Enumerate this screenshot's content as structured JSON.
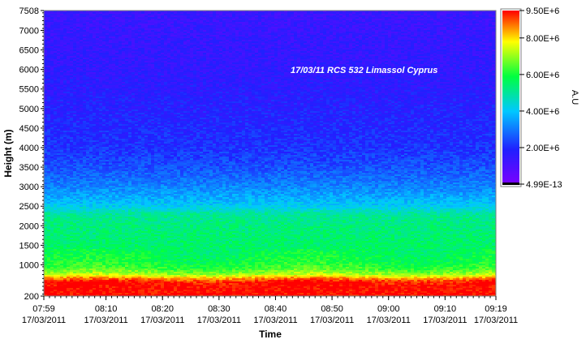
{
  "chart_data": {
    "type": "heatmap",
    "annotation": "17/03/11 RCS 532 Limassol Cyprus",
    "xlabel": "Time",
    "ylabel": "Height (m)",
    "colorbar_label": "A.U",
    "x_ticks": [
      {
        "time": "07:59",
        "date": "17/03/2011",
        "minutes": 0
      },
      {
        "time": "08:10",
        "date": "17/03/2011",
        "minutes": 11
      },
      {
        "time": "08:20",
        "date": "17/03/2011",
        "minutes": 21
      },
      {
        "time": "08:30",
        "date": "17/03/2011",
        "minutes": 31
      },
      {
        "time": "08:40",
        "date": "17/03/2011",
        "minutes": 41
      },
      {
        "time": "08:50",
        "date": "17/03/2011",
        "minutes": 51
      },
      {
        "time": "09:00",
        "date": "17/03/2011",
        "minutes": 61
      },
      {
        "time": "09:10",
        "date": "17/03/2011",
        "minutes": 71
      },
      {
        "time": "09:19",
        "date": "17/03/2011",
        "minutes": 80
      }
    ],
    "x_range_minutes": [
      0,
      80
    ],
    "y_ticks": [
      {
        "label": "200",
        "value": 200
      },
      {
        "label": "1000",
        "value": 1000
      },
      {
        "label": "1500",
        "value": 1500
      },
      {
        "label": "2000",
        "value": 2000
      },
      {
        "label": "2500",
        "value": 2500
      },
      {
        "label": "3000",
        "value": 3000
      },
      {
        "label": "3500",
        "value": 3500
      },
      {
        "label": "4000",
        "value": 4000
      },
      {
        "label": "4500",
        "value": 4500
      },
      {
        "label": "5000",
        "value": 5000
      },
      {
        "label": "5500",
        "value": 5500
      },
      {
        "label": "6000",
        "value": 6000
      },
      {
        "label": "6500",
        "value": 6500
      },
      {
        "label": "7000",
        "value": 7000
      },
      {
        "label": "7508",
        "value": 7508
      }
    ],
    "ylim": [
      200,
      7508
    ],
    "colorbar": {
      "min": 4.99e-13,
      "max": 9500000.0,
      "ticks": [
        {
          "label": "9.50E+6",
          "value": 9500000
        },
        {
          "label": "8.00E+6",
          "value": 8000000
        },
        {
          "label": "6.00E+6",
          "value": 6000000
        },
        {
          "label": "4.00E+6",
          "value": 4000000
        },
        {
          "label": "2.00E+6",
          "value": 2000000
        },
        {
          "label": "4.99E-13",
          "value": 4.99e-13
        }
      ],
      "colors": [
        "#7a00ff",
        "#2020ff",
        "#00c8ff",
        "#00ff40",
        "#ffff00",
        "#ff0000"
      ]
    },
    "profile": [
      {
        "height": 200,
        "value": 9500000
      },
      {
        "height": 550,
        "value": 9500000
      },
      {
        "height": 650,
        "value": 8600000
      },
      {
        "height": 750,
        "value": 7200000
      },
      {
        "height": 900,
        "value": 6300000
      },
      {
        "height": 1100,
        "value": 5900000
      },
      {
        "height": 1500,
        "value": 5500000
      },
      {
        "height": 2000,
        "value": 5300000
      },
      {
        "height": 2300,
        "value": 5000000
      },
      {
        "height": 2500,
        "value": 4100000
      },
      {
        "height": 2800,
        "value": 3500000
      },
      {
        "height": 3100,
        "value": 3000000
      },
      {
        "height": 3500,
        "value": 2500000
      },
      {
        "height": 4000,
        "value": 2100000
      },
      {
        "height": 5000,
        "value": 1800000
      },
      {
        "height": 6000,
        "value": 1550000
      },
      {
        "height": 7508,
        "value": 1350000
      }
    ]
  }
}
